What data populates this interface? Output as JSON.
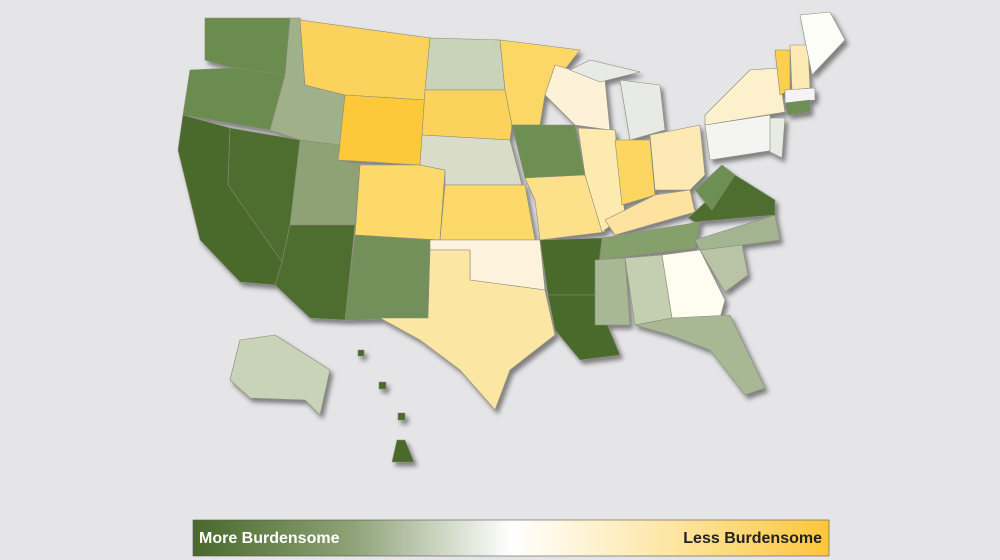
{
  "legend": {
    "left_label": "More Burdensome",
    "right_label": "Less Burdensome"
  }
}
